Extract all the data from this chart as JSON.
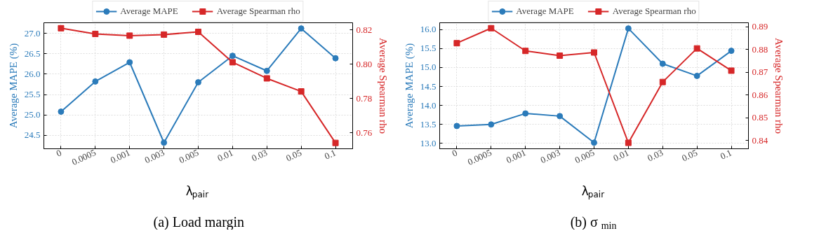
{
  "chart_data": [
    {
      "type": "line",
      "title": "(a) Load margin",
      "xlabel": "λ$_{pair}$",
      "ylabel": "Average MAPE (%)",
      "y2label": "Average Spearman rho",
      "categories": [
        "0",
        "0.0005",
        "0.001",
        "0.003",
        "0.005",
        "0.01",
        "0.03",
        "0.05",
        "0.1"
      ],
      "series": [
        {
          "name": "Average MAPE",
          "color": "#2b7bba",
          "marker": "circle",
          "values": [
            25.08,
            25.82,
            26.29,
            24.32,
            25.8,
            26.45,
            26.08,
            27.12,
            26.39
          ]
        },
        {
          "name": "Average Spearman rho",
          "color": "#d62728",
          "marker": "square",
          "axis": "y2",
          "values": [
            0.821,
            0.8177,
            0.8167,
            0.8173,
            0.8189,
            0.8012,
            0.7918,
            0.7842,
            0.7542
          ]
        }
      ],
      "ylim": [
        24.17,
        27.26
      ],
      "yticks": [
        {
          "value": 24.5,
          "label": "24.5"
        },
        {
          "value": 25,
          "label": "25.0"
        },
        {
          "value": 25.5,
          "label": "25.5"
        },
        {
          "value": 26,
          "label": "26.0"
        },
        {
          "value": 26.5,
          "label": "26.5"
        },
        {
          "value": 27,
          "label": "27.0"
        }
      ],
      "y2lim": [
        0.7508,
        0.8242
      ],
      "y2ticks": [
        {
          "value": 0.76,
          "label": "0.76"
        },
        {
          "value": 0.78,
          "label": "0.78"
        },
        {
          "value": 0.8,
          "label": "0.80"
        },
        {
          "value": 0.82,
          "label": "0.82"
        }
      ],
      "grid": true,
      "legend": "top"
    },
    {
      "type": "line",
      "title": "(b) σ$_{min}$",
      "xlabel": "λ$_{pair}$",
      "ylabel": "Average MAPE (%)",
      "y2label": "Average Spearman rho",
      "categories": [
        "0",
        "0.0005",
        "0.001",
        "0.003",
        "0.005",
        "0.01",
        "0.03",
        "0.05",
        "0.1"
      ],
      "series": [
        {
          "name": "Average MAPE",
          "color": "#2b7bba",
          "marker": "circle",
          "values": [
            13.46,
            13.5,
            13.79,
            13.72,
            13.02,
            16.03,
            15.1,
            14.78,
            15.44
          ]
        },
        {
          "name": "Average Spearman rho",
          "color": "#d62728",
          "marker": "square",
          "axis": "y2",
          "values": [
            0.8828,
            0.8894,
            0.8794,
            0.8773,
            0.8787,
            0.8389,
            0.8657,
            0.8805,
            0.8707
          ]
        }
      ],
      "ylim": [
        12.86,
        16.18
      ],
      "yticks": [
        {
          "value": 13,
          "label": "13.0"
        },
        {
          "value": 13.5,
          "label": "13.5"
        },
        {
          "value": 14,
          "label": "14.0"
        },
        {
          "value": 14.5,
          "label": "14.5"
        },
        {
          "value": 15,
          "label": "15.0"
        },
        {
          "value": 15.5,
          "label": "15.5"
        },
        {
          "value": 16,
          "label": "16.0"
        }
      ],
      "y2lim": [
        0.8363,
        0.8918
      ],
      "y2ticks": [
        {
          "value": 0.84,
          "label": "0.84"
        },
        {
          "value": 0.85,
          "label": "0.85"
        },
        {
          "value": 0.86,
          "label": "0.86"
        },
        {
          "value": 0.87,
          "label": "0.87"
        },
        {
          "value": 0.88,
          "label": "0.88"
        },
        {
          "value": 0.89,
          "label": "0.89"
        }
      ],
      "grid": true,
      "legend": "top"
    }
  ]
}
